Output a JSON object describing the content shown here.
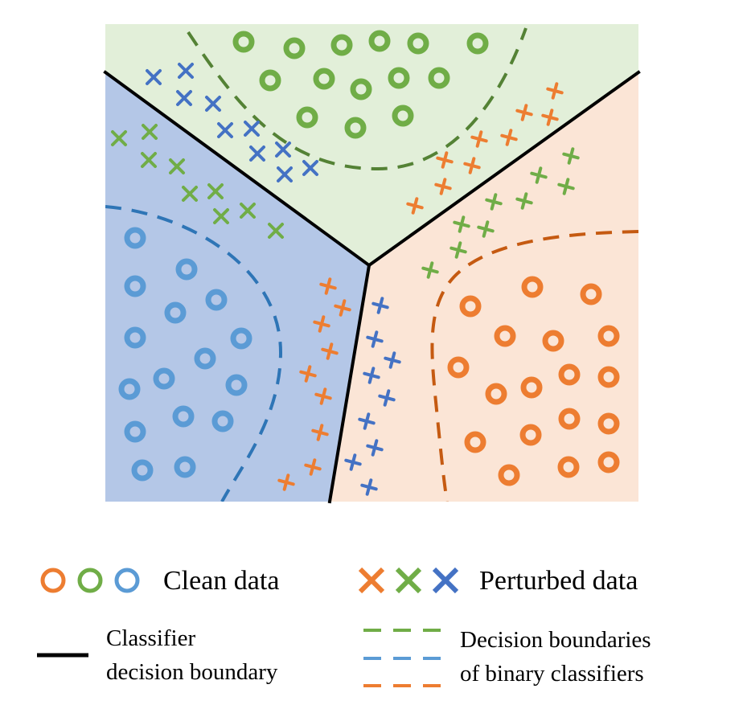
{
  "colors": {
    "green_region": "#e2efd9",
    "blue_region": "#b4c7e7",
    "orange_region": "#fbe5d6",
    "clean_green": "#70ad47",
    "clean_blue": "#5b9bd5",
    "clean_orange": "#ed7d31",
    "perturbed_green": "#70ad47",
    "perturbed_blue": "#4472c4",
    "perturbed_orange": "#ed7d31",
    "dash_green": "#548235",
    "dash_blue": "#2e75b6",
    "dash_orange": "#c55a11",
    "boundary": "#000000"
  },
  "legend": {
    "clean_label": "Clean data",
    "perturbed_label": "Perturbed data",
    "classifier_boundary_line1": "Classifier",
    "classifier_boundary_line2": "decision boundary",
    "binary_boundaries_line1": "Decision boundaries",
    "binary_boundaries_line2": "of binary classifiers",
    "marker_icons": [
      "ring-marker-icon",
      "cross-marker-icon",
      "solid-line-icon",
      "dashed-line-icon"
    ]
  }
}
